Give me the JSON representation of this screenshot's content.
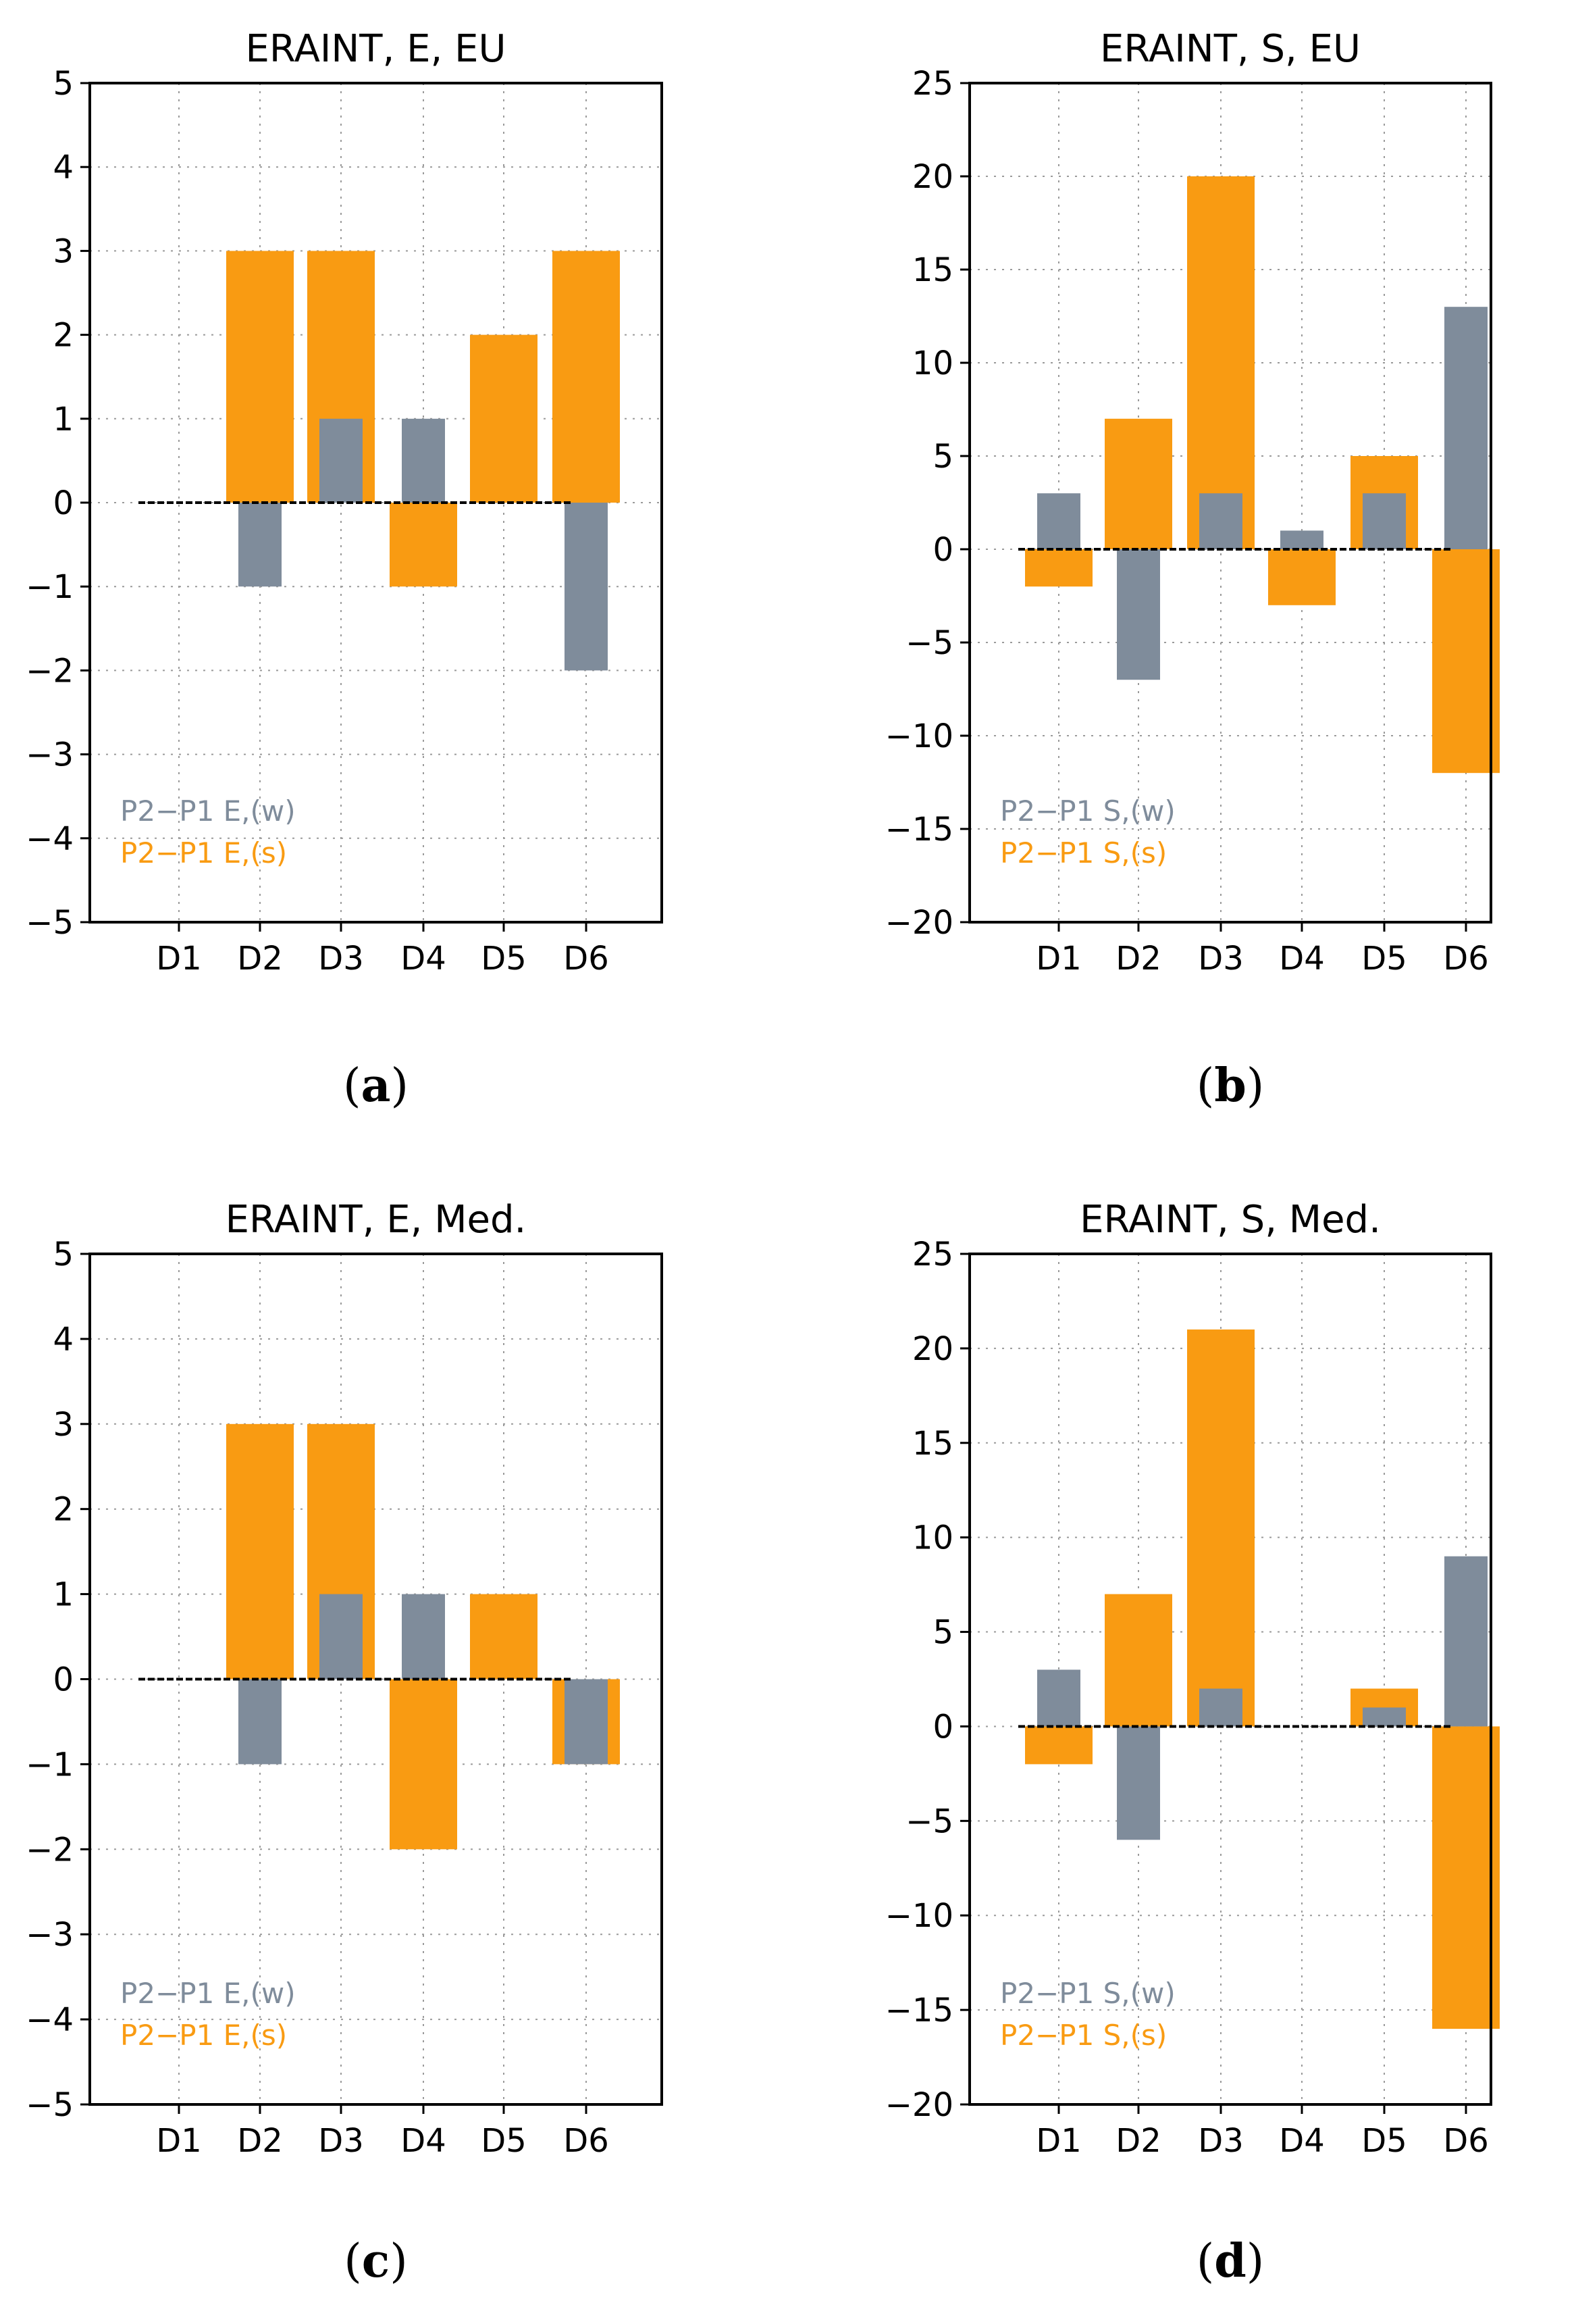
{
  "colors": {
    "winter": "#7f8c9b",
    "summer": "#f99b12"
  },
  "chart_data": [
    {
      "type": "bar",
      "title": "ERAINT, E, EU",
      "caption": "a",
      "categories": [
        "D1",
        "D2",
        "D3",
        "D4",
        "D5",
        "D6"
      ],
      "ylim": [
        -5,
        5
      ],
      "yticks": [
        -5,
        -4,
        -3,
        -2,
        -1,
        0,
        1,
        2,
        3,
        4,
        5
      ],
      "yticklabels": [
        "−5",
        "−4",
        "−3",
        "−2",
        "−1",
        "0",
        "1",
        "2",
        "3",
        "4",
        "5"
      ],
      "series": [
        {
          "name": "P2−P1 E,(s)",
          "values": [
            0,
            3,
            3,
            -1,
            2,
            3
          ]
        },
        {
          "name": "P2−P1 E,(w)",
          "values": [
            0,
            -1,
            1,
            1,
            0,
            -2
          ]
        }
      ]
    },
    {
      "type": "bar",
      "title": "ERAINT, S, EU",
      "caption": "b",
      "categories": [
        "D1",
        "D2",
        "D3",
        "D4",
        "D5",
        "D6"
      ],
      "ylim": [
        -20,
        25
      ],
      "yticks": [
        -20,
        -15,
        -10,
        -5,
        0,
        5,
        10,
        15,
        20,
        25
      ],
      "yticklabels": [
        "−20",
        "−15",
        "−10",
        "−5",
        "0",
        "5",
        "10",
        "15",
        "20",
        "25"
      ],
      "series": [
        {
          "name": "P2−P1 S,(s)",
          "values": [
            -2,
            7,
            20,
            -3,
            5,
            -12
          ]
        },
        {
          "name": "P2−P1 S,(w)",
          "values": [
            3,
            -7,
            3,
            1,
            3,
            13
          ]
        }
      ]
    },
    {
      "type": "bar",
      "title": "ERAINT, E, Med.",
      "caption": "c",
      "categories": [
        "D1",
        "D2",
        "D3",
        "D4",
        "D5",
        "D6"
      ],
      "ylim": [
        -5,
        5
      ],
      "yticks": [
        -5,
        -4,
        -3,
        -2,
        -1,
        0,
        1,
        2,
        3,
        4,
        5
      ],
      "yticklabels": [
        "−5",
        "−4",
        "−3",
        "−2",
        "−1",
        "0",
        "1",
        "2",
        "3",
        "4",
        "5"
      ],
      "series": [
        {
          "name": "P2−P1 E,(s)",
          "values": [
            0,
            3,
            3,
            -2,
            1,
            -1
          ]
        },
        {
          "name": "P2−P1 E,(w)",
          "values": [
            0,
            -1,
            1,
            1,
            0,
            -1
          ]
        }
      ]
    },
    {
      "type": "bar",
      "title": "ERAINT, S, Med.",
      "caption": "d",
      "categories": [
        "D1",
        "D2",
        "D3",
        "D4",
        "D5",
        "D6"
      ],
      "ylim": [
        -20,
        25
      ],
      "yticks": [
        -20,
        -15,
        -10,
        -5,
        0,
        5,
        10,
        15,
        20,
        25
      ],
      "yticklabels": [
        "−20",
        "−15",
        "−10",
        "−5",
        "0",
        "5",
        "10",
        "15",
        "20",
        "25"
      ],
      "series": [
        {
          "name": "P2−P1 S,(s)",
          "values": [
            -2,
            7,
            21,
            0,
            2,
            -16
          ]
        },
        {
          "name": "P2−P1 S,(w)",
          "values": [
            3,
            -6,
            2,
            0,
            1,
            9
          ]
        }
      ]
    }
  ]
}
